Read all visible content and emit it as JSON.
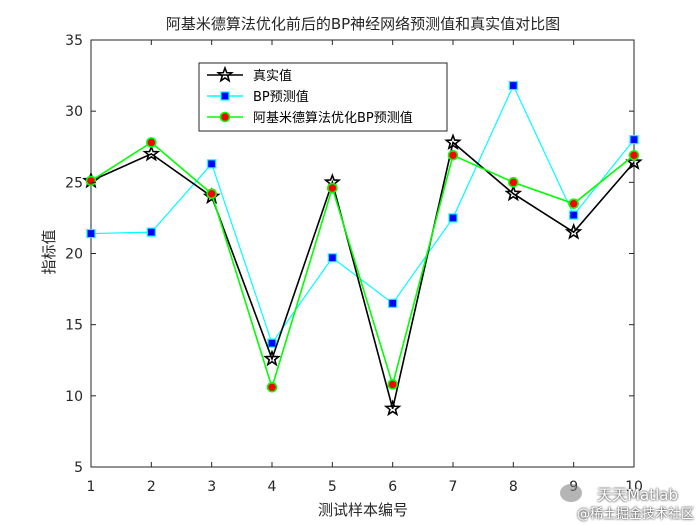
{
  "chart_data": {
    "type": "line",
    "title": "阿基米德算法优化前后的BP神经网络预测值和真实值对比图",
    "xlabel": "测试样本编号",
    "ylabel": "指标值",
    "xlim": [
      1,
      10
    ],
    "ylim": [
      5,
      35
    ],
    "x": [
      1,
      2,
      3,
      4,
      5,
      6,
      7,
      8,
      9,
      10
    ],
    "xticks": [
      "1",
      "2",
      "3",
      "4",
      "5",
      "6",
      "7",
      "8",
      "9",
      "10"
    ],
    "yticks": [
      "5",
      "10",
      "15",
      "20",
      "25",
      "30",
      "35"
    ],
    "grid": false,
    "legend_position": "top-left",
    "series": [
      {
        "name": "真实值",
        "marker": "star",
        "color": "#000000",
        "marker_face": "none",
        "values": [
          25.1,
          27.0,
          24.0,
          12.6,
          25.0,
          9.1,
          27.8,
          24.2,
          21.5,
          26.4
        ]
      },
      {
        "name": "BP预测值",
        "marker": "square",
        "color": "#00ffff",
        "marker_face": "#0000ff",
        "values": [
          21.4,
          21.5,
          26.3,
          13.7,
          19.7,
          16.5,
          22.5,
          31.8,
          22.7,
          28.0
        ]
      },
      {
        "name": "阿基米德算法优化BP预测值",
        "marker": "circle",
        "color": "#00ff00",
        "marker_face": "#ff0000",
        "values": [
          25.1,
          27.8,
          24.2,
          10.6,
          24.6,
          10.8,
          26.9,
          25.0,
          23.5,
          26.9
        ]
      }
    ]
  },
  "watermark": {
    "line1": "天天Matlab",
    "line2": "@稀土掘金技术社区"
  }
}
